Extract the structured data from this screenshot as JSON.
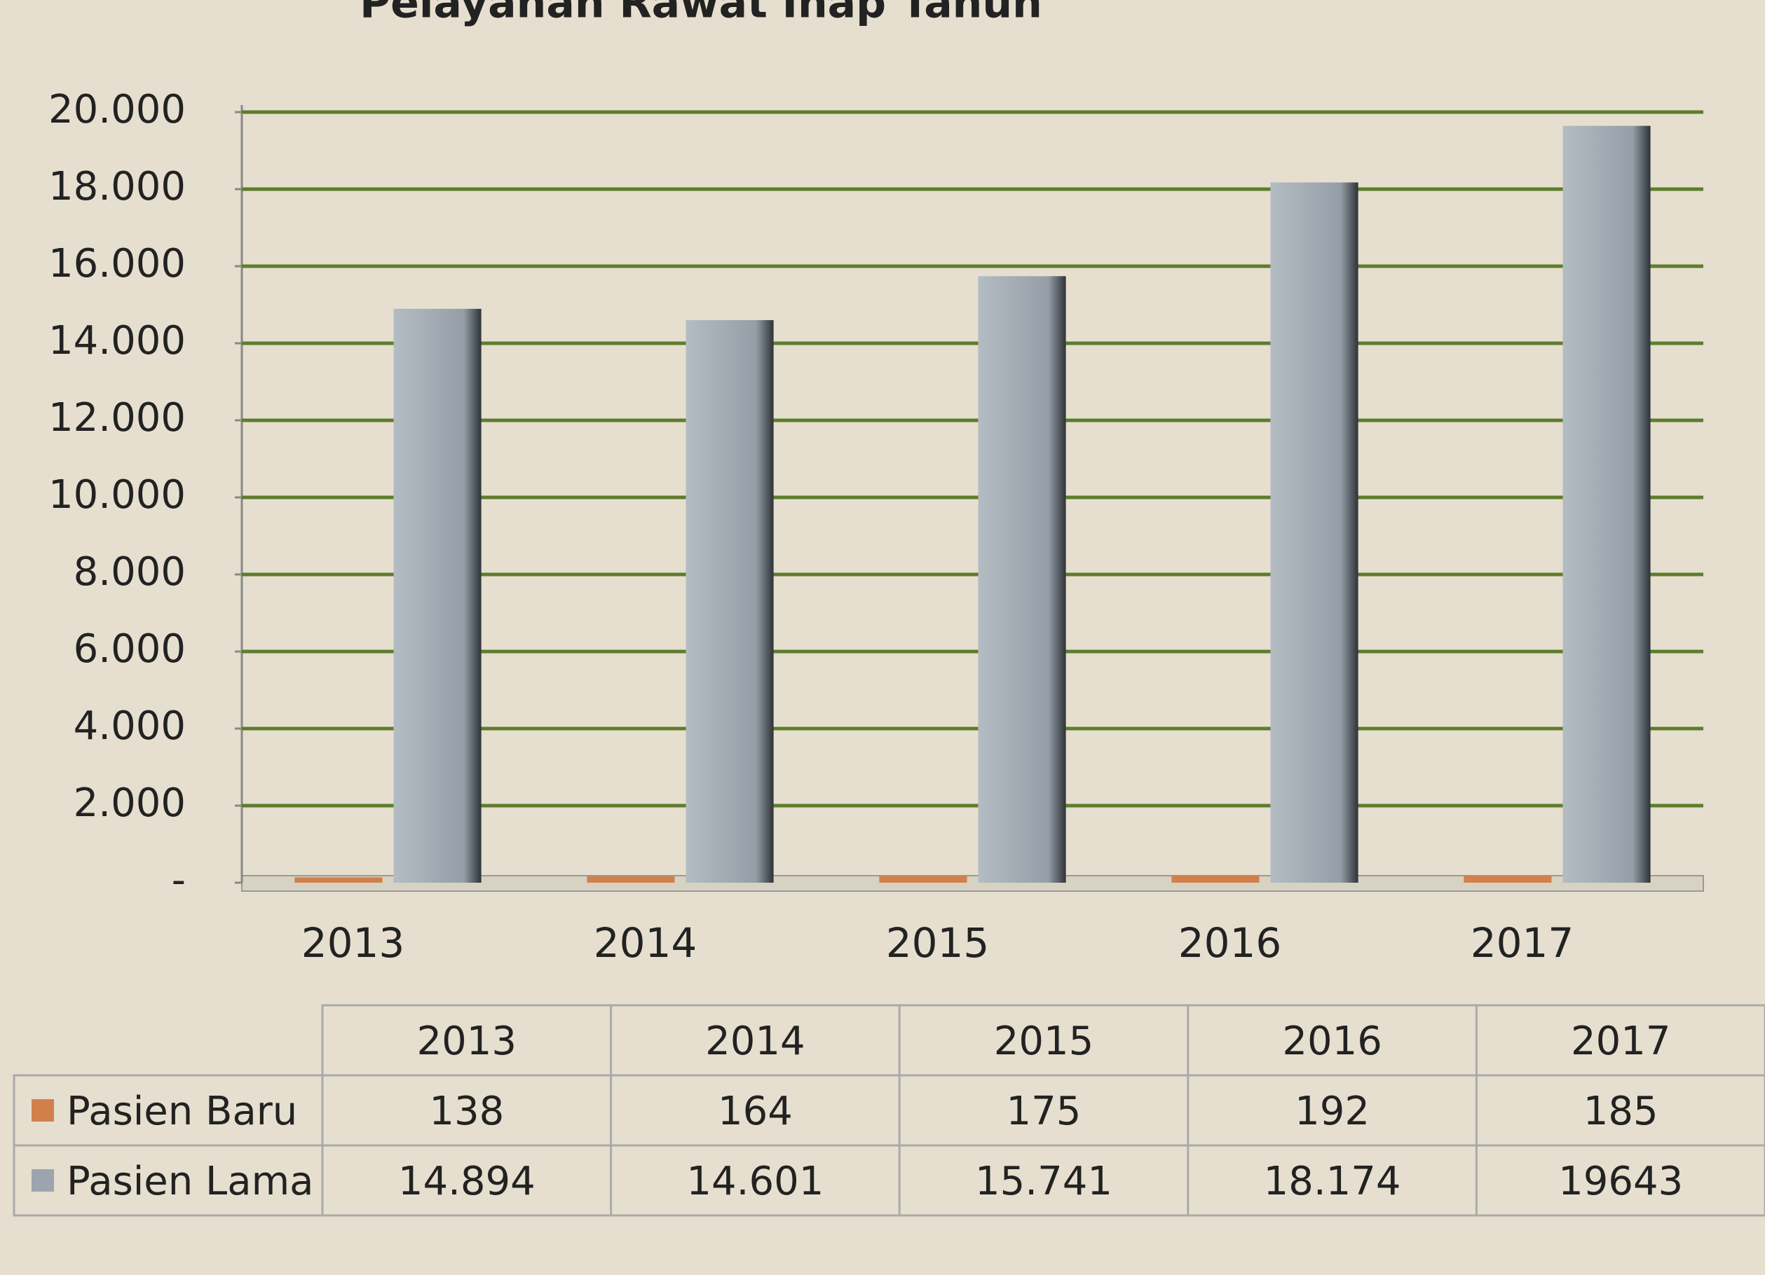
{
  "chart_data": {
    "type": "bar",
    "title": "Pelayanan Rawat Inap Tahun",
    "categories": [
      "2013",
      "2014",
      "2015",
      "2016",
      "2017"
    ],
    "series": [
      {
        "name": "Pasien Baru",
        "color": "#d2804a",
        "values": [
          138,
          164,
          175,
          192,
          185
        ]
      },
      {
        "name": "Pasien Lama",
        "color": "#9ca5ae",
        "values": [
          14894,
          14601,
          15741,
          18174,
          19643
        ],
        "value_labels": [
          "14.894",
          "14.601",
          "15.741",
          "18.174",
          "19643"
        ]
      }
    ],
    "ylim": [
      0,
      20000
    ],
    "yticks": [
      {
        "value": 0,
        "label": "-"
      },
      {
        "value": 2000,
        "label": "2.000"
      },
      {
        "value": 4000,
        "label": "4.000"
      },
      {
        "value": 6000,
        "label": "6.000"
      },
      {
        "value": 8000,
        "label": "8.000"
      },
      {
        "value": 10000,
        "label": "10.000"
      },
      {
        "value": 12000,
        "label": "12.000"
      },
      {
        "value": 14000,
        "label": "14.000"
      },
      {
        "value": 16000,
        "label": "16.000"
      },
      {
        "value": 18000,
        "label": "18.000"
      },
      {
        "value": 20000,
        "label": "20.000"
      }
    ],
    "grid": true,
    "grid_color": "#5d7d2c"
  }
}
